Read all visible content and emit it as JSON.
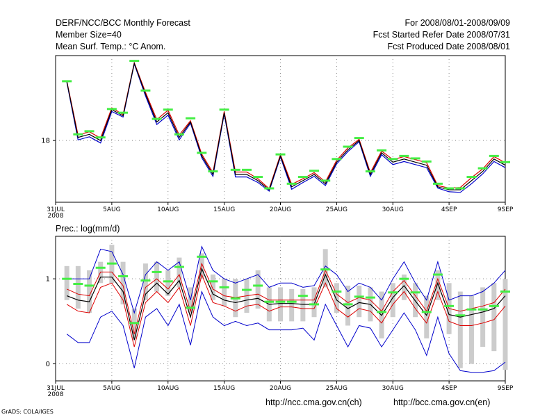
{
  "header": {
    "title": "DERF/NCC/BCC Monthly Forecast",
    "member_size": "Member Size=40",
    "variable": "Mean Surf. Temp.: °C Anom.",
    "period": "For 2008/08/01-2008/09/09",
    "started_date": "Fcst Started Refer Date 2008/07/31",
    "produced_date": "Fcst Produced Date 2008/08/01"
  },
  "footer": {
    "credit": "GrADS: COLA/IGES",
    "url_ch": "http://ncc.cma.gov.cn(ch)",
    "url_en": "http://bcc.cma.gov.cn(en)"
  },
  "colors": {
    "mean": "#000000",
    "spread": "#dd0000",
    "range": "#0000cc",
    "marker": "#44ee44",
    "box": "#cccccc",
    "grid": "#888888"
  },
  "chart_data": [
    {
      "type": "line",
      "title": "Mean Surf. Temp.: °C Anom.",
      "x_tick_labels": [
        "31JUL",
        "5AUG",
        "10AUG",
        "15AUG",
        "20AUG",
        "25AUG",
        "30AUG",
        "4SEP",
        "9SEP"
      ],
      "x_tick_days": [
        0,
        5,
        10,
        15,
        20,
        25,
        30,
        35,
        40
      ],
      "x_year_label": "2008",
      "xlim": [
        0,
        40
      ],
      "ylim": [
        16.0,
        20.75
      ],
      "y_ticks": [
        18
      ],
      "x": [
        1,
        2,
        3,
        4,
        5,
        6,
        7,
        8,
        9,
        10,
        11,
        12,
        13,
        14,
        15,
        16,
        17,
        18,
        19,
        20,
        21,
        22,
        23,
        24,
        25,
        26,
        27,
        28,
        29,
        30,
        31,
        32,
        33,
        34,
        35,
        36,
        37,
        38,
        39,
        40
      ],
      "series": [
        {
          "name": "ensemble mean",
          "values": [
            19.9,
            18.1,
            18.2,
            18,
            19,
            18.8,
            20.5,
            19.5,
            18.6,
            18.9,
            18.1,
            18.6,
            17.5,
            16.9,
            18.9,
            16.9,
            16.9,
            16.7,
            16.4,
            17.5,
            16.5,
            16.7,
            16.9,
            16.6,
            17.3,
            17.7,
            18,
            16.9,
            17.6,
            17.3,
            17.4,
            17.3,
            17.2,
            16.5,
            16.4,
            16.4,
            16.7,
            17,
            17.4,
            17.2
          ]
        },
        {
          "name": "spread upper",
          "values": [
            19.92,
            18.18,
            18.28,
            18.08,
            19.06,
            18.84,
            20.52,
            19.56,
            18.68,
            18.98,
            18.18,
            18.64,
            17.56,
            16.96,
            18.94,
            16.98,
            16.98,
            16.76,
            16.44,
            17.54,
            16.58,
            16.76,
            16.96,
            16.66,
            17.36,
            17.76,
            18.04,
            16.96,
            17.66,
            17.38,
            17.48,
            17.38,
            17.28,
            16.54,
            16.46,
            16.48,
            16.8,
            17.08,
            17.48,
            17.28
          ]
        },
        {
          "name": "spread lower",
          "values": [
            19.88,
            18.02,
            18.12,
            17.92,
            18.94,
            18.76,
            20.48,
            19.44,
            18.52,
            18.82,
            18.02,
            18.56,
            17.44,
            16.84,
            18.86,
            16.82,
            16.82,
            16.64,
            16.36,
            17.46,
            16.42,
            16.64,
            16.84,
            16.54,
            17.24,
            17.64,
            17.96,
            16.84,
            17.54,
            17.22,
            17.32,
            17.22,
            17.12,
            16.46,
            16.34,
            16.32,
            16.6,
            16.92,
            17.32,
            17.12
          ]
        },
        {
          "name": "green marker",
          "values": [
            19.92,
            18.2,
            18.3,
            18.1,
            19.02,
            18.9,
            20.58,
            19.62,
            18.7,
            19,
            18.2,
            18.72,
            17.6,
            17,
            19,
            17.05,
            17.05,
            16.82,
            16.45,
            17.55,
            16.6,
            16.82,
            17.02,
            16.7,
            17.4,
            17.8,
            18.08,
            17,
            17.68,
            17.4,
            17.5,
            17.42,
            17.32,
            16.6,
            16.45,
            16.45,
            16.82,
            17.1,
            17.5,
            17.3
          ]
        }
      ]
    },
    {
      "type": "line",
      "title": "Prec.: log(mm/d)",
      "x_tick_labels": [
        "31JUL",
        "5AUG",
        "10AUG",
        "15AUG",
        "20AUG",
        "25AUG",
        "30AUG",
        "4SEP",
        "9SEP"
      ],
      "x_tick_days": [
        0,
        5,
        10,
        15,
        20,
        25,
        30,
        35,
        40
      ],
      "x_year_label": "2008",
      "xlim": [
        0,
        40
      ],
      "ylim": [
        -0.2,
        1.5
      ],
      "y_ticks": [
        0,
        1
      ],
      "x": [
        1,
        2,
        3,
        4,
        5,
        6,
        7,
        8,
        9,
        10,
        11,
        12,
        13,
        14,
        15,
        16,
        17,
        18,
        19,
        20,
        21,
        22,
        23,
        24,
        25,
        26,
        27,
        28,
        29,
        30,
        31,
        32,
        33,
        34,
        35,
        36,
        37,
        38,
        39,
        40
      ],
      "series": [
        {
          "name": "max",
          "values": [
            1.0,
            1.0,
            1.0,
            1.35,
            1.32,
            1.05,
            0.6,
            1.05,
            1.2,
            1.1,
            1.2,
            0.75,
            1.38,
            1.1,
            1.0,
            0.95,
            1.0,
            1.05,
            0.9,
            0.95,
            0.95,
            0.9,
            0.92,
            1.15,
            1.05,
            0.85,
            0.95,
            0.9,
            0.75,
            1.0,
            1.2,
            0.95,
            0.75,
            1.2,
            0.75,
            0.8,
            0.8,
            0.85,
            0.95,
            1.1
          ]
        },
        {
          "name": "spread upper",
          "values": [
            0.88,
            0.82,
            0.8,
            1.08,
            1.08,
            0.92,
            0.35,
            0.9,
            1.0,
            0.88,
            1.05,
            0.62,
            1.18,
            0.88,
            0.8,
            0.78,
            0.8,
            0.82,
            0.75,
            0.75,
            0.75,
            0.75,
            0.75,
            1.1,
            0.82,
            0.72,
            0.78,
            0.75,
            0.62,
            0.85,
            0.98,
            0.8,
            0.62,
            1.0,
            0.65,
            0.62,
            0.65,
            0.68,
            0.72,
            0.88
          ]
        },
        {
          "name": "ensemble mean",
          "values": [
            0.8,
            0.75,
            0.73,
            1.02,
            1.02,
            0.85,
            0.28,
            0.82,
            0.95,
            0.82,
            0.98,
            0.55,
            1.12,
            0.82,
            0.75,
            0.72,
            0.75,
            0.77,
            0.7,
            0.71,
            0.71,
            0.7,
            0.7,
            1.05,
            0.75,
            0.65,
            0.72,
            0.7,
            0.57,
            0.78,
            0.92,
            0.74,
            0.57,
            0.95,
            0.58,
            0.55,
            0.58,
            0.61,
            0.65,
            0.8
          ]
        },
        {
          "name": "spread lower",
          "values": [
            0.7,
            0.62,
            0.6,
            0.9,
            0.95,
            0.75,
            0.2,
            0.72,
            0.85,
            0.72,
            0.9,
            0.45,
            1.05,
            0.72,
            0.68,
            0.62,
            0.68,
            0.7,
            0.62,
            0.67,
            0.67,
            0.65,
            0.65,
            0.95,
            0.65,
            0.55,
            0.65,
            0.62,
            0.48,
            0.7,
            0.85,
            0.65,
            0.48,
            0.85,
            0.5,
            0.45,
            0.45,
            0.48,
            0.52,
            0.68
          ]
        },
        {
          "name": "min",
          "values": [
            0.35,
            0.25,
            0.25,
            0.55,
            0.62,
            0.45,
            -0.05,
            0.55,
            0.65,
            0.45,
            0.7,
            0.22,
            0.85,
            0.55,
            0.45,
            0.5,
            0.45,
            0.48,
            0.4,
            0.4,
            0.4,
            0.42,
            0.28,
            0.7,
            0.45,
            0.2,
            0.45,
            0.42,
            0.2,
            0.4,
            0.6,
            0.4,
            0.1,
            0.55,
            0.12,
            -0.08,
            -0.1,
            -0.1,
            -0.08,
            0.02
          ]
        },
        {
          "name": "green marker",
          "values": [
            1.0,
            0.94,
            0.92,
            1.13,
            1.18,
            1.03,
            0.48,
            0.98,
            1.08,
            0.97,
            1.14,
            0.66,
            1.26,
            0.97,
            0.9,
            0.77,
            0.87,
            0.92,
            0.73,
            0.73,
            0.73,
            0.8,
            0.7,
            1.11,
            0.85,
            0.7,
            0.79,
            0.78,
            0.61,
            0.84,
            1.0,
            0.84,
            0.61,
            1.05,
            0.68,
            0.57,
            0.64,
            0.64,
            0.68,
            0.85
          ]
        },
        {
          "name": "box upper",
          "values": [
            1.15,
            1.15,
            1.1,
            1.2,
            1.4,
            1.2,
            0.65,
            1.18,
            1.2,
            1.1,
            1.25,
            0.9,
            1.3,
            1.05,
            1.0,
            1.0,
            1.0,
            1.1,
            0.9,
            0.9,
            0.88,
            0.88,
            0.9,
            1.35,
            0.95,
            0.92,
            0.92,
            0.9,
            0.85,
            0.95,
            1.05,
            0.95,
            0.8,
            1.1,
            0.95,
            0.85,
            0.8,
            0.9,
            0.95,
            1.0
          ]
        },
        {
          "name": "box lower",
          "values": [
            0.75,
            0.65,
            0.6,
            0.95,
            0.95,
            0.7,
            0.3,
            0.75,
            0.85,
            0.8,
            0.9,
            0.6,
            1.0,
            0.75,
            0.68,
            0.55,
            0.6,
            0.65,
            0.5,
            0.5,
            0.5,
            0.5,
            0.55,
            0.9,
            0.6,
            0.45,
            0.55,
            0.5,
            0.3,
            0.55,
            0.75,
            0.55,
            0.3,
            0.75,
            0.35,
            -0.05,
            0.0,
            0.2,
            0.15,
            -0.07
          ]
        }
      ]
    }
  ]
}
